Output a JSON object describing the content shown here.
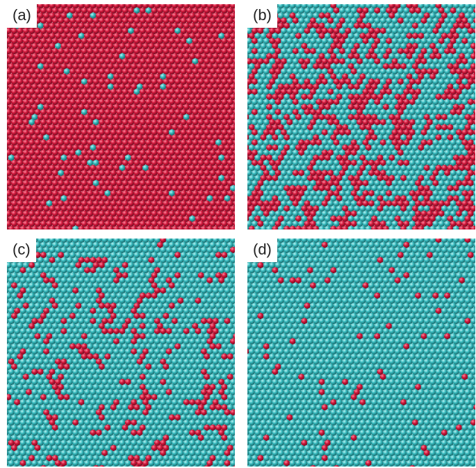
{
  "colors": {
    "red_atom": "#d1193c",
    "teal_atom": "#37b9bd"
  },
  "panels": [
    {
      "label": "(a)",
      "majority": "red",
      "minority_fraction": 0.03
    },
    {
      "label": "(b)",
      "majority": "teal",
      "minority_fraction": 0.4
    },
    {
      "label": "(c)",
      "majority": "teal",
      "minority_fraction": 0.15
    },
    {
      "label": "(d)",
      "majority": "teal",
      "minority_fraction": 0.04
    }
  ]
}
